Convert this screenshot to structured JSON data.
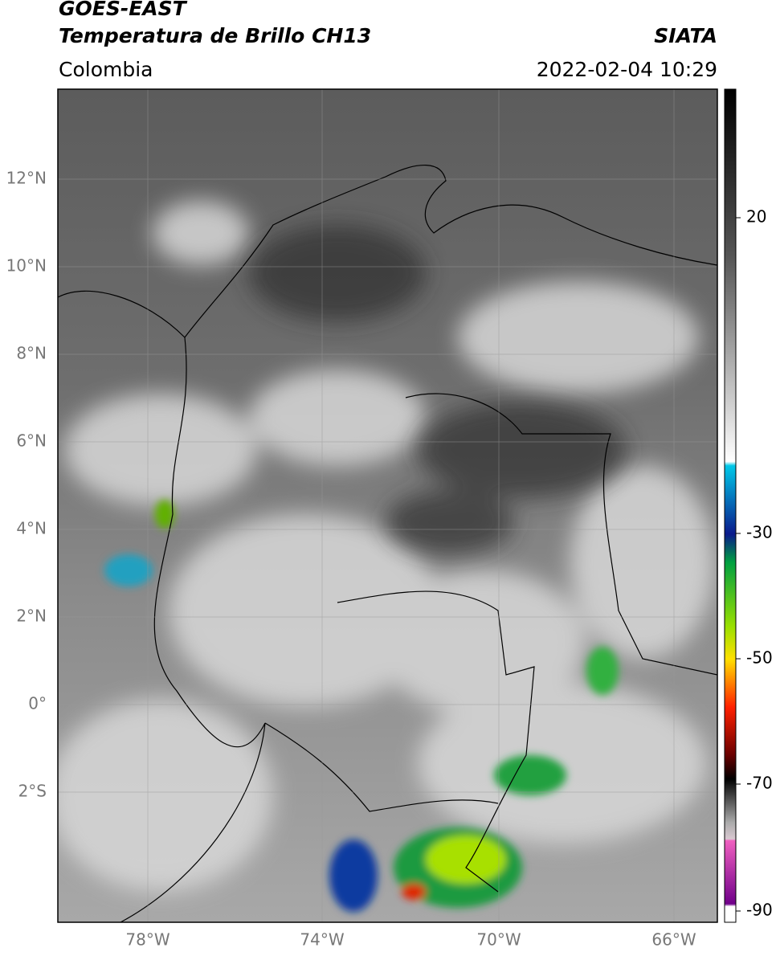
{
  "header": {
    "title": "GOES-EAST",
    "subtitle": "Temperatura de Brillo CH13",
    "source": "SIATA",
    "region": "Colombia",
    "timestamp": "2022-02-04 10:29"
  },
  "map": {
    "lon_labels": [
      "78°W",
      "74°W",
      "70°W",
      "66°W"
    ],
    "lat_labels": [
      "12°N",
      "10°N",
      "8°N",
      "6°N",
      "4°N",
      "2°N",
      "0°",
      "2°S"
    ]
  },
  "colorbar": {
    "labels": [
      "20",
      "-30",
      "-50",
      "-70",
      "-90"
    ]
  }
}
